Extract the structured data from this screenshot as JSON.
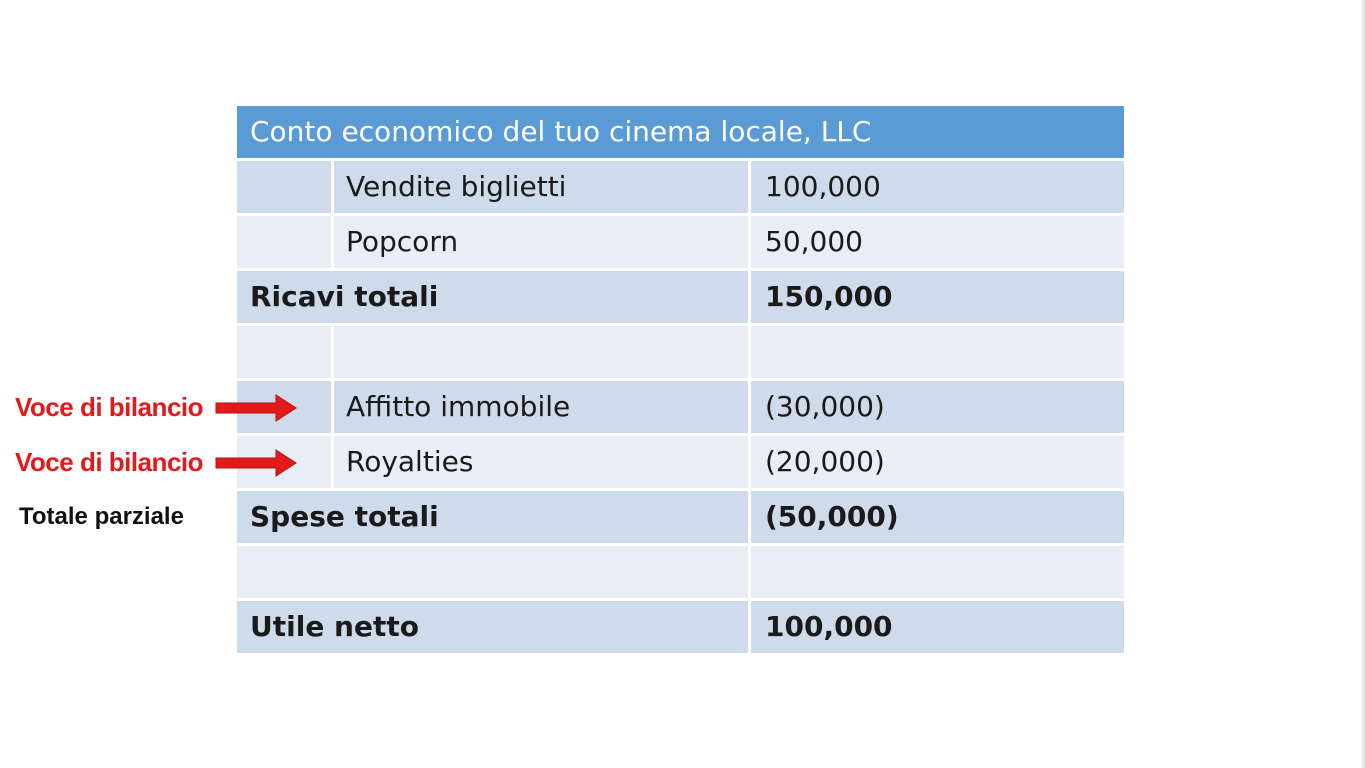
{
  "table": {
    "title": "Conto economico del tuo cinema locale, LLC",
    "rows": [
      {
        "item": "Vendite biglietti",
        "value": "100,000"
      },
      {
        "item": "Popcorn",
        "value": "50,000"
      },
      {
        "label": "Ricavi totali",
        "value": "150,000"
      },
      {
        "item": "",
        "value": ""
      },
      {
        "item": "Affitto immobile",
        "value": "(30,000)"
      },
      {
        "item": "Royalties",
        "value": "(20,000)"
      },
      {
        "label": "Spese totali",
        "value": "(50,000)"
      },
      {
        "label": "",
        "value": ""
      },
      {
        "label": "Utile netto",
        "value": "100,000"
      }
    ]
  },
  "annotations": {
    "line_item_1": "Voce di bilancio",
    "line_item_2": "Voce di bilancio",
    "subtotal": "Totale parziale"
  },
  "colors": {
    "header": "#5b9bd5",
    "row_dark": "#cfdaea",
    "row_light": "#e9eef6",
    "annotation_red": "#e3191c"
  }
}
